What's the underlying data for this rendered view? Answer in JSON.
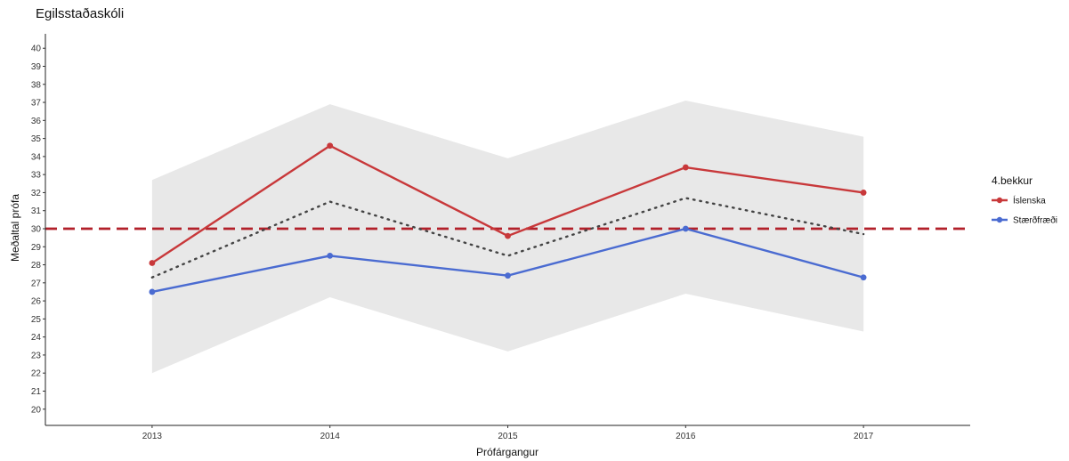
{
  "chart_data": {
    "type": "line",
    "title": "Egilsstaðaskóli",
    "xlabel": "Prófárgangur",
    "ylabel": "Meðaltal prófa",
    "x": [
      2013,
      2014,
      2015,
      2016,
      2017
    ],
    "xlim": [
      2012.4,
      2017.6
    ],
    "ylim": [
      19.1,
      40.8
    ],
    "yticks": [
      20,
      21,
      22,
      23,
      24,
      25,
      26,
      27,
      28,
      29,
      30,
      31,
      32,
      33,
      34,
      35,
      36,
      37,
      38,
      39,
      40
    ],
    "series": [
      {
        "name": "Íslenska",
        "color": "#c8383a",
        "values": [
          28.1,
          34.6,
          29.6,
          33.4,
          32.0
        ]
      },
      {
        "name": "Stærðfræði",
        "color": "#4a6bd1",
        "values": [
          26.5,
          28.5,
          27.4,
          30.0,
          27.3
        ]
      }
    ],
    "average_line": {
      "style": "dotted",
      "color": "#444444",
      "values": [
        27.3,
        31.5,
        28.5,
        31.7,
        29.7
      ]
    },
    "band": {
      "color": "#e8e8e8",
      "lower": [
        22.0,
        26.2,
        23.2,
        26.4,
        24.3
      ],
      "upper": [
        32.7,
        36.9,
        33.9,
        37.1,
        35.1
      ]
    },
    "reference_line": {
      "value": 30,
      "style": "dashed",
      "color": "#b2202a"
    },
    "legend": {
      "title": "4.bekkur",
      "position": "right"
    },
    "grid": false
  }
}
